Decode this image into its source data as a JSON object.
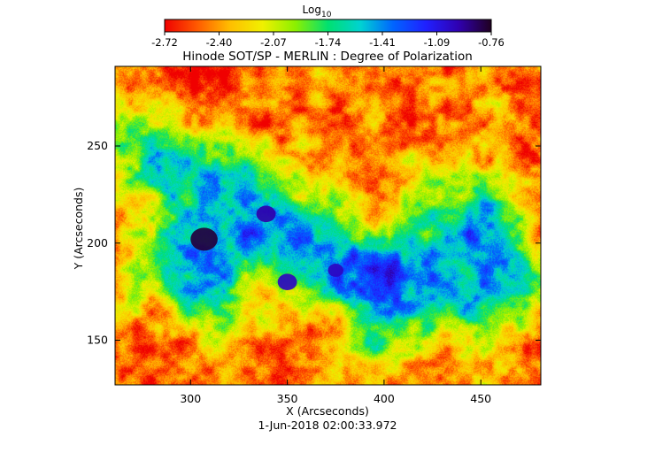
{
  "chart_data": {
    "type": "heatmap",
    "title": "Hinode SOT/SP - MERLIN : Degree of Polarization",
    "xlabel": "X (Arcseconds)",
    "ylabel": "Y (Arcseconds)",
    "timestamp": "1-Jun-2018 02:00:33.972",
    "xlim": [
      261,
      481
    ],
    "ylim": [
      127,
      291
    ],
    "xticks": [
      300,
      350,
      400,
      450
    ],
    "yticks": [
      150,
      200,
      250
    ],
    "colorbar": {
      "label_base": "Log",
      "label_sub": "10",
      "range": [
        -2.72,
        -0.76
      ],
      "ticks": [
        "-2.72",
        "-2.40",
        "-2.07",
        "-1.74",
        "-1.41",
        "-1.09",
        "-0.76"
      ],
      "colormap": [
        "#f00000",
        "#ff5a00",
        "#ffbe00",
        "#f0f000",
        "#8cf000",
        "#00e070",
        "#00d2d2",
        "#0064ff",
        "#2020ff",
        "#3000b0",
        "#200020"
      ]
    },
    "features": [
      {
        "name": "strong-polarization-core-1",
        "x": 307,
        "y": 202,
        "r": 7,
        "value": -0.8
      },
      {
        "name": "strong-polarization-core-2",
        "x": 339,
        "y": 215,
        "r": 5,
        "value": -0.95
      },
      {
        "name": "strong-polarization-core-3",
        "x": 350,
        "y": 180,
        "r": 5,
        "value": -1.0
      },
      {
        "name": "strong-polarization-core-4",
        "x": 375,
        "y": 186,
        "r": 4,
        "value": -1.0
      }
    ]
  }
}
